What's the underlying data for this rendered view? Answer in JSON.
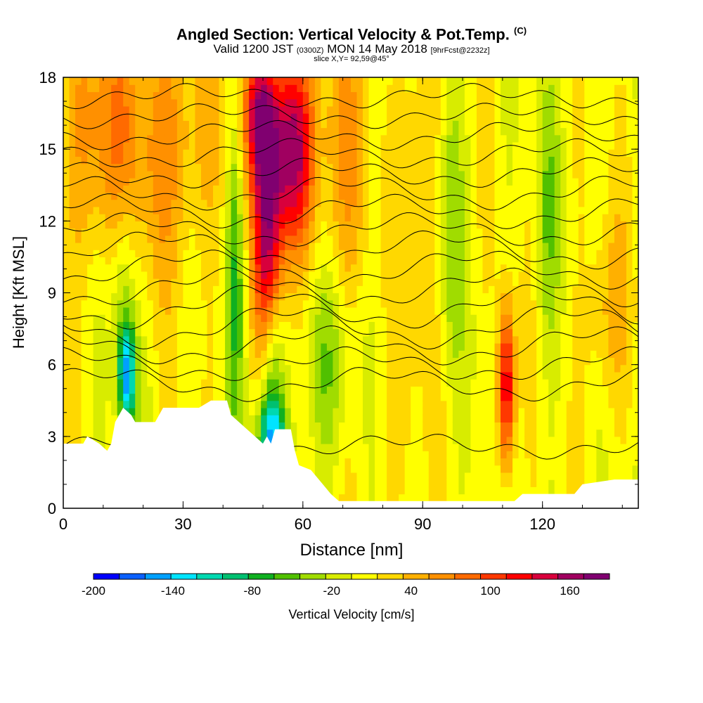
{
  "title": {
    "main": "Angled Section: Vertical Velocity & Pot.Temp.",
    "mark": "(C)",
    "valid_prefix": "Valid 1200 JST",
    "utc": "(0300Z)",
    "valid_date": "MON 14 May 2018",
    "forecast": "[9hrFcst@2232z]",
    "slice": "slice X,Y= 92,59@45°"
  },
  "chart_data": {
    "type": "heatmap",
    "xlabel": "Distance [nm]",
    "ylabel": "Height [Kft MSL]",
    "xlim": [
      0,
      144
    ],
    "ylim": [
      0,
      18
    ],
    "x_ticks": [
      0,
      30,
      60,
      90,
      120
    ],
    "y_ticks": [
      0,
      3,
      6,
      9,
      12,
      15,
      18
    ],
    "colorbar": {
      "label": "Vertical Velocity [cm/s]",
      "ticks": [
        -200,
        -140,
        -80,
        -20,
        40,
        100,
        160
      ],
      "range": [
        -200,
        190
      ],
      "step": 20,
      "colors": [
        "#0000ff",
        "#0a60ff",
        "#00a0ff",
        "#00e4ff",
        "#00d8b0",
        "#00c070",
        "#10b020",
        "#50c000",
        "#a0dc00",
        "#d8ec00",
        "#ffff00",
        "#ffd800",
        "#ffb000",
        "#ff9000",
        "#ff6a00",
        "#ff3800",
        "#ff0000",
        "#d8003c",
        "#a00060",
        "#800070"
      ]
    },
    "velocity_features": [
      {
        "x": 16,
        "z": 5.5,
        "sx": 1.5,
        "sz": 1.5,
        "w": -150
      },
      {
        "x": 15,
        "z": 9,
        "sx": 2,
        "sz": 3,
        "w": -50
      },
      {
        "x": 52,
        "z": 3,
        "sx": 2.5,
        "sz": 1.2,
        "w": -140
      },
      {
        "x": 52,
        "z": 6,
        "sx": 2,
        "sz": 2,
        "w": -70
      },
      {
        "x": 57,
        "z": 15,
        "sx": 4,
        "sz": 3,
        "w": 170
      },
      {
        "x": 51,
        "z": 11,
        "sx": 2.5,
        "sz": 4,
        "w": 130
      },
      {
        "x": 49,
        "z": 16.5,
        "sx": 3,
        "sz": 2,
        "w": 110
      },
      {
        "x": 111,
        "z": 5,
        "sx": 1.5,
        "sz": 2.5,
        "w": 150
      },
      {
        "x": 26,
        "z": 15.5,
        "sx": 10,
        "sz": 4,
        "w": 60
      },
      {
        "x": 8,
        "z": 15.5,
        "sx": 6,
        "sz": 4,
        "w": 55
      },
      {
        "x": 43,
        "z": 10,
        "sx": 1.5,
        "sz": 5,
        "w": -60
      },
      {
        "x": 66,
        "z": 6,
        "sx": 5,
        "sz": 3,
        "w": -50
      },
      {
        "x": 97,
        "z": 12,
        "sx": 2,
        "sz": 5,
        "w": -40
      },
      {
        "x": 121,
        "z": 12,
        "sx": 2,
        "sz": 4,
        "w": -40
      },
      {
        "x": 70,
        "z": 14,
        "sx": 5,
        "sz": 5,
        "w": 50
      },
      {
        "x": 89,
        "z": 14,
        "sx": 3,
        "sz": 5,
        "w": 45
      },
      {
        "x": 136,
        "z": 8,
        "sx": 4,
        "sz": 3,
        "w": 45
      },
      {
        "x": 82,
        "z": 3,
        "sx": 8,
        "sz": 3,
        "w": 15
      }
    ],
    "terrain": [
      [
        0,
        2.7
      ],
      [
        5,
        2.7
      ],
      [
        6,
        3.0
      ],
      [
        9,
        2.7
      ],
      [
        11,
        2.4
      ],
      [
        12,
        2.7
      ],
      [
        13,
        3.6
      ],
      [
        15,
        4.2
      ],
      [
        17,
        3.9
      ],
      [
        18,
        3.6
      ],
      [
        23,
        3.6
      ],
      [
        25,
        4.2
      ],
      [
        34,
        4.2
      ],
      [
        37,
        4.5
      ],
      [
        41,
        4.5
      ],
      [
        42,
        3.9
      ],
      [
        44,
        3.6
      ],
      [
        46,
        3.3
      ],
      [
        48,
        3.0
      ],
      [
        50,
        2.7
      ],
      [
        51,
        3.0
      ],
      [
        52,
        2.7
      ],
      [
        53,
        3.3
      ],
      [
        57,
        3.3
      ],
      [
        58,
        2.4
      ],
      [
        59,
        1.8
      ],
      [
        62,
        1.6
      ],
      [
        65,
        1.0
      ],
      [
        67,
        0.6
      ],
      [
        69,
        0.3
      ],
      [
        113,
        0.3
      ],
      [
        115,
        0.6
      ],
      [
        128,
        0.6
      ],
      [
        130,
        1.0
      ],
      [
        138,
        1.2
      ],
      [
        144,
        1.2
      ]
    ],
    "theta_contours": [
      {
        "z": 2.6,
        "amp": 0.3
      },
      {
        "z": 5.2,
        "amp": 0.5
      },
      {
        "z": 6.0,
        "amp": 0.5
      },
      {
        "z": 6.8,
        "amp": 0.6
      },
      {
        "z": 7.6,
        "amp": 0.7
      },
      {
        "z": 8.4,
        "amp": 0.7
      },
      {
        "z": 9.2,
        "amp": 0.6
      },
      {
        "z": 10.0,
        "amp": 0.6
      },
      {
        "z": 10.8,
        "amp": 0.6
      },
      {
        "z": 11.6,
        "amp": 0.5
      },
      {
        "z": 12.4,
        "amp": 0.5
      },
      {
        "z": 13.2,
        "amp": 0.5
      },
      {
        "z": 14.0,
        "amp": 0.4
      },
      {
        "z": 14.8,
        "amp": 0.4
      },
      {
        "z": 15.6,
        "amp": 0.4
      },
      {
        "z": 16.4,
        "amp": 0.3
      },
      {
        "z": 17.2,
        "amp": 0.3
      }
    ]
  }
}
